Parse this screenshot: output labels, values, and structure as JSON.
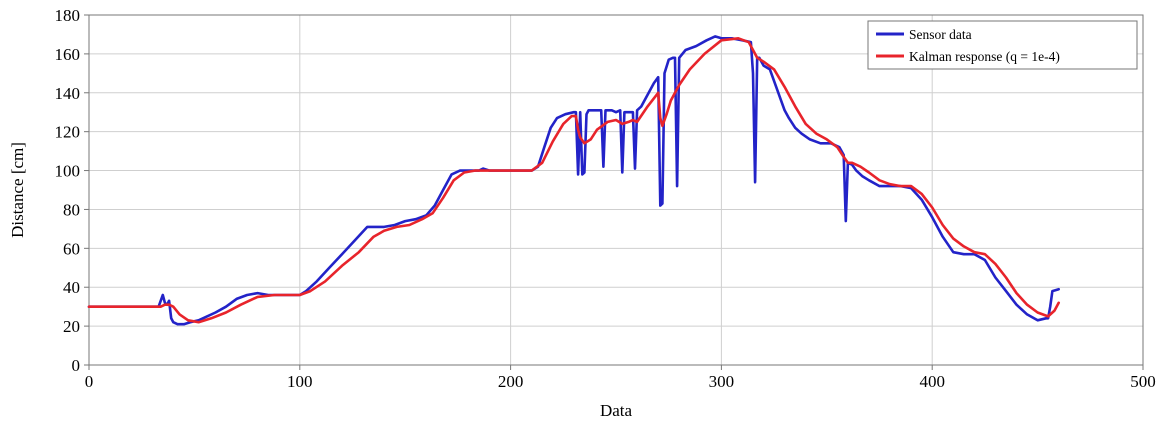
{
  "chart_data": {
    "type": "line",
    "title": "",
    "xlabel": "Data",
    "ylabel": "Distance [cm]",
    "xlim": [
      0,
      500
    ],
    "ylim": [
      0,
      180
    ],
    "x_ticks": [
      0,
      100,
      200,
      300,
      400,
      500
    ],
    "y_ticks": [
      0,
      20,
      40,
      60,
      80,
      100,
      120,
      140,
      160,
      180
    ],
    "grid": true,
    "legend_position": "top-right",
    "series": [
      {
        "name": "Sensor data",
        "color": "#2323c8",
        "points": [
          [
            0,
            30
          ],
          [
            33,
            30
          ],
          [
            34,
            33
          ],
          [
            35,
            36
          ],
          [
            36,
            32
          ],
          [
            37,
            31
          ],
          [
            38,
            33
          ],
          [
            39,
            24
          ],
          [
            40,
            22
          ],
          [
            42,
            21
          ],
          [
            45,
            21
          ],
          [
            48,
            22
          ],
          [
            52,
            23
          ],
          [
            56,
            25
          ],
          [
            60,
            27
          ],
          [
            65,
            30
          ],
          [
            70,
            34
          ],
          [
            75,
            36
          ],
          [
            80,
            37
          ],
          [
            85,
            36
          ],
          [
            90,
            36
          ],
          [
            100,
            36
          ],
          [
            103,
            38
          ],
          [
            108,
            43
          ],
          [
            114,
            50
          ],
          [
            120,
            57
          ],
          [
            126,
            64
          ],
          [
            132,
            71
          ],
          [
            136,
            71
          ],
          [
            140,
            71
          ],
          [
            145,
            72
          ],
          [
            150,
            74
          ],
          [
            155,
            75
          ],
          [
            160,
            77
          ],
          [
            164,
            82
          ],
          [
            168,
            90
          ],
          [
            172,
            98
          ],
          [
            176,
            100
          ],
          [
            180,
            100
          ],
          [
            185,
            100
          ],
          [
            187,
            101
          ],
          [
            190,
            100
          ],
          [
            200,
            100
          ],
          [
            210,
            100
          ],
          [
            213,
            102
          ],
          [
            216,
            112
          ],
          [
            219,
            122
          ],
          [
            222,
            127
          ],
          [
            226,
            129
          ],
          [
            230,
            130
          ],
          [
            231,
            130
          ],
          [
            232,
            98
          ],
          [
            233,
            130
          ],
          [
            234,
            98
          ],
          [
            235,
            99
          ],
          [
            236,
            129
          ],
          [
            237,
            131
          ],
          [
            240,
            131
          ],
          [
            243,
            131
          ],
          [
            244,
            102
          ],
          [
            245,
            131
          ],
          [
            248,
            131
          ],
          [
            250,
            130
          ],
          [
            252,
            131
          ],
          [
            253,
            99
          ],
          [
            254,
            130
          ],
          [
            258,
            130
          ],
          [
            259,
            101
          ],
          [
            260,
            131
          ],
          [
            262,
            133
          ],
          [
            265,
            139
          ],
          [
            268,
            145
          ],
          [
            270,
            148
          ],
          [
            271,
            82
          ],
          [
            272,
            83
          ],
          [
            273,
            150
          ],
          [
            275,
            157
          ],
          [
            277,
            158
          ],
          [
            278,
            158
          ],
          [
            279,
            92
          ],
          [
            280,
            158
          ],
          [
            283,
            162
          ],
          [
            288,
            164
          ],
          [
            293,
            167
          ],
          [
            297,
            169
          ],
          [
            300,
            168
          ],
          [
            305,
            168
          ],
          [
            310,
            167
          ],
          [
            314,
            166
          ],
          [
            315,
            150
          ],
          [
            316,
            94
          ],
          [
            317,
            158
          ],
          [
            318,
            158
          ],
          [
            320,
            154
          ],
          [
            323,
            152
          ],
          [
            326,
            143
          ],
          [
            330,
            131
          ],
          [
            332,
            127
          ],
          [
            335,
            122
          ],
          [
            338,
            119
          ],
          [
            342,
            116
          ],
          [
            347,
            114
          ],
          [
            352,
            114
          ],
          [
            356,
            112
          ],
          [
            358,
            108
          ],
          [
            359,
            74
          ],
          [
            360,
            104
          ],
          [
            362,
            103
          ],
          [
            364,
            100
          ],
          [
            367,
            97
          ],
          [
            370,
            95
          ],
          [
            375,
            92
          ],
          [
            380,
            92
          ],
          [
            385,
            92
          ],
          [
            390,
            91
          ],
          [
            395,
            85
          ],
          [
            400,
            76
          ],
          [
            405,
            66
          ],
          [
            410,
            58
          ],
          [
            415,
            57
          ],
          [
            420,
            57
          ],
          [
            425,
            54
          ],
          [
            430,
            45
          ],
          [
            435,
            38
          ],
          [
            440,
            31
          ],
          [
            445,
            26
          ],
          [
            450,
            23
          ],
          [
            454,
            24
          ],
          [
            455,
            24
          ],
          [
            456,
            30
          ],
          [
            457,
            38
          ],
          [
            460,
            39
          ]
        ]
      },
      {
        "name": "Kalman response (q = 1e-4)",
        "color": "#e8242b",
        "points": [
          [
            0,
            30
          ],
          [
            34,
            30
          ],
          [
            36,
            31
          ],
          [
            38,
            31
          ],
          [
            40,
            30
          ],
          [
            43,
            26
          ],
          [
            47,
            23
          ],
          [
            52,
            22
          ],
          [
            58,
            24
          ],
          [
            65,
            27
          ],
          [
            72,
            31
          ],
          [
            80,
            35
          ],
          [
            88,
            36
          ],
          [
            95,
            36
          ],
          [
            100,
            36
          ],
          [
            105,
            38
          ],
          [
            112,
            43
          ],
          [
            120,
            51
          ],
          [
            128,
            58
          ],
          [
            135,
            66
          ],
          [
            140,
            69
          ],
          [
            146,
            71
          ],
          [
            152,
            72
          ],
          [
            158,
            75
          ],
          [
            163,
            78
          ],
          [
            168,
            86
          ],
          [
            173,
            95
          ],
          [
            178,
            99
          ],
          [
            183,
            100
          ],
          [
            190,
            100
          ],
          [
            200,
            100
          ],
          [
            210,
            100
          ],
          [
            215,
            104
          ],
          [
            220,
            115
          ],
          [
            225,
            124
          ],
          [
            229,
            128
          ],
          [
            231,
            128
          ],
          [
            232,
            121
          ],
          [
            233,
            117
          ],
          [
            235,
            114
          ],
          [
            238,
            116
          ],
          [
            241,
            121
          ],
          [
            246,
            125
          ],
          [
            250,
            126
          ],
          [
            253,
            124
          ],
          [
            256,
            125
          ],
          [
            258,
            126
          ],
          [
            260,
            125
          ],
          [
            265,
            133
          ],
          [
            270,
            140
          ],
          [
            271,
            127
          ],
          [
            272,
            123
          ],
          [
            274,
            129
          ],
          [
            276,
            136
          ],
          [
            278,
            140
          ],
          [
            280,
            144
          ],
          [
            285,
            152
          ],
          [
            292,
            160
          ],
          [
            300,
            167
          ],
          [
            308,
            168
          ],
          [
            313,
            166
          ],
          [
            315,
            162
          ],
          [
            317,
            158
          ],
          [
            320,
            156
          ],
          [
            325,
            152
          ],
          [
            330,
            143
          ],
          [
            335,
            133
          ],
          [
            340,
            124
          ],
          [
            345,
            119
          ],
          [
            350,
            116
          ],
          [
            355,
            112
          ],
          [
            358,
            107
          ],
          [
            360,
            104
          ],
          [
            362,
            104
          ],
          [
            366,
            102
          ],
          [
            370,
            99
          ],
          [
            375,
            95
          ],
          [
            380,
            93
          ],
          [
            385,
            92
          ],
          [
            390,
            92
          ],
          [
            395,
            88
          ],
          [
            400,
            81
          ],
          [
            405,
            72
          ],
          [
            410,
            65
          ],
          [
            415,
            61
          ],
          [
            420,
            58
          ],
          [
            425,
            57
          ],
          [
            430,
            52
          ],
          [
            435,
            45
          ],
          [
            440,
            37
          ],
          [
            445,
            31
          ],
          [
            450,
            27
          ],
          [
            455,
            25
          ],
          [
            458,
            28
          ],
          [
            460,
            32
          ]
        ]
      }
    ]
  }
}
